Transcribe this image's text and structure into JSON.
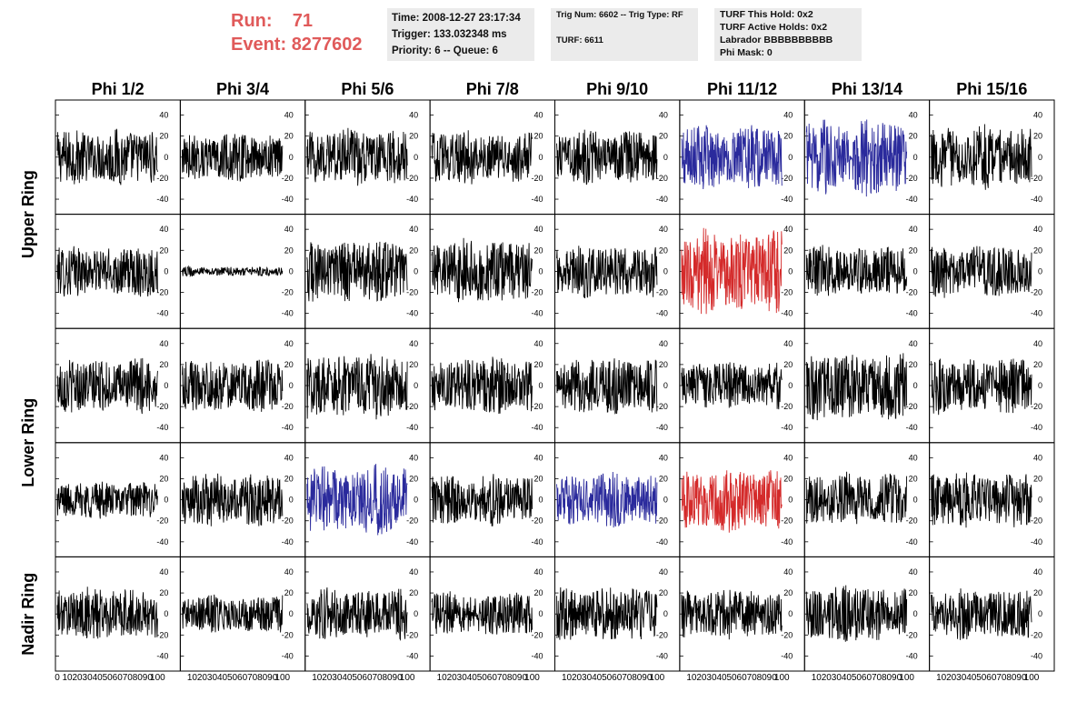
{
  "header": {
    "run_label": "Run:",
    "run_value": "71",
    "event_label": "Event:",
    "event_value": "8277602",
    "accent_color": "#e05a5a",
    "info1": {
      "time": "Time: 2008-12-27 23:17:34",
      "trigger": "Trigger: 133.032348 ms",
      "priority": "Priority: 6 -- Queue: 6"
    },
    "info2": {
      "trig": "Trig Num: 6602 -- Trig Type: RF",
      "turf": "TURF: 6611"
    },
    "info3": {
      "this_hold": "TURF This Hold: 0x2",
      "active_holds": "TURF Active Holds: 0x2",
      "labrador": "Labrador BBBBBBBBBB",
      "phi_mask": "Phi Mask: 0"
    }
  },
  "chart_data": {
    "type": "line",
    "columns": [
      "Phi 1/2",
      "Phi 3/4",
      "Phi 5/6",
      "Phi 7/8",
      "Phi 9/10",
      "Phi 11/12",
      "Phi 13/14",
      "Phi 15/16"
    ],
    "rows": [
      "Upper Ring",
      "Lower Ring",
      "Nadir Ring"
    ],
    "xlim": [
      0,
      100
    ],
    "ylim": [
      -50,
      50
    ],
    "x_ticks": [
      0,
      10,
      20,
      30,
      40,
      50,
      60,
      70,
      80,
      90,
      100
    ],
    "y_ticks": [
      -40,
      -20,
      0,
      20,
      40
    ],
    "series_colors": {
      "black": "#000000",
      "blue": "#2a2a9c",
      "red": "#d42a2a"
    },
    "panels": [
      [
        {
          "color": "black",
          "amp": 18
        },
        {
          "color": "black",
          "amp": 15
        },
        {
          "color": "black",
          "amp": 18
        },
        {
          "color": "black",
          "amp": 17
        },
        {
          "color": "black",
          "amp": 17
        },
        {
          "color": "blue",
          "amp": 20
        },
        {
          "color": "blue",
          "amp": 24
        },
        {
          "color": "black",
          "amp": 20
        }
      ],
      [
        {
          "color": "black",
          "amp": 16
        },
        {
          "color": "black",
          "amp": 3
        },
        {
          "color": "black",
          "amp": 20
        },
        {
          "color": "black",
          "amp": 21
        },
        {
          "color": "black",
          "amp": 17
        },
        {
          "color": "red",
          "amp": 26
        },
        {
          "color": "black",
          "amp": 16
        },
        {
          "color": "black",
          "amp": 17
        }
      ],
      [
        {
          "color": "black",
          "amp": 17
        },
        {
          "color": "black",
          "amp": 17
        },
        {
          "color": "black",
          "amp": 21
        },
        {
          "color": "black",
          "amp": 18
        },
        {
          "color": "black",
          "amp": 18
        },
        {
          "color": "black",
          "amp": 15
        },
        {
          "color": "black",
          "amp": 22
        },
        {
          "color": "black",
          "amp": 18
        }
      ],
      [
        {
          "color": "black",
          "amp": 12
        },
        {
          "color": "black",
          "amp": 17
        },
        {
          "color": "blue",
          "amp": 22
        },
        {
          "color": "black",
          "amp": 16
        },
        {
          "color": "blue",
          "amp": 17
        },
        {
          "color": "red",
          "amp": 20
        },
        {
          "color": "black",
          "amp": 17
        },
        {
          "color": "black",
          "amp": 18
        }
      ],
      [
        {
          "color": "black",
          "amp": 17
        },
        {
          "color": "black",
          "amp": 12
        },
        {
          "color": "black",
          "amp": 16
        },
        {
          "color": "black",
          "amp": 14
        },
        {
          "color": "black",
          "amp": 17
        },
        {
          "color": "black",
          "amp": 16
        },
        {
          "color": "black",
          "amp": 18
        },
        {
          "color": "black",
          "amp": 16
        }
      ]
    ]
  }
}
